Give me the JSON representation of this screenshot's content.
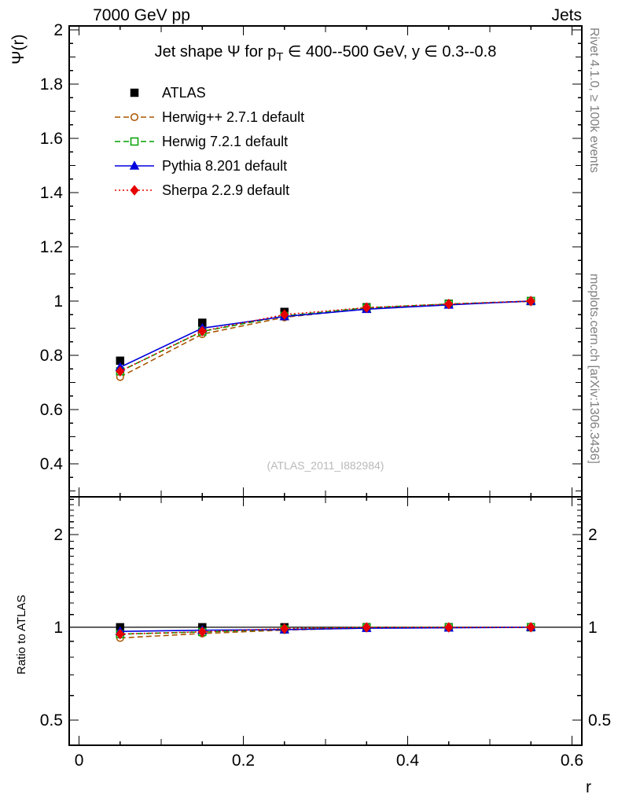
{
  "header": {
    "left": "7000 GeV pp",
    "right": "Jets"
  },
  "title": {
    "pre": "Jet shape Ψ for p",
    "sub": "T",
    "post": " ∈ 400--500 GeV, y ∈ 0.3--0.8"
  },
  "axes": {
    "y_label": "Ψ(r)",
    "ratio_label": "Ratio to ATLAS",
    "x_label": "r"
  },
  "side_texts": {
    "top": "Rivet 4.1.0, ≥ 100k events",
    "bottom": "mcplots.cern.ch [arXiv:1306.3436]"
  },
  "watermark": "(ATLAS_2011_I882984)",
  "chart_data": {
    "type": "line",
    "title": "Jet shape Ψ for p_T ∈ 400--500 GeV, y ∈ 0.3--0.8",
    "xlabel": "r",
    "ylabel": "Ψ(r)",
    "ratio_ylabel": "Ratio to ATLAS",
    "legend_position": "top-left-inside",
    "grid": false,
    "x": [
      0.05,
      0.15,
      0.25,
      0.35,
      0.45,
      0.55
    ],
    "x_range": [
      -0.012,
      0.612
    ],
    "y_range": [
      0.278,
      2.0145
    ],
    "ratio_range": [
      0.414,
      2.65
    ],
    "ratio_scale": "log",
    "x_ticks": {
      "major": [
        0,
        0.2,
        0.4,
        0.6
      ],
      "labels": [
        "0",
        "0.2",
        "0.4",
        "0.6"
      ]
    },
    "y_ticks": {
      "major": [
        0.4,
        0.6,
        0.8,
        1.0,
        1.2,
        1.4,
        1.6,
        1.8,
        2.0
      ],
      "labels": [
        "0.4",
        "0.6",
        "0.8",
        "1",
        "1.2",
        "1.4",
        "1.6",
        "1.8",
        "2"
      ]
    },
    "ratio_ticks": {
      "major": [
        0.5,
        1,
        2
      ],
      "labels": [
        "0.5",
        "1",
        "2"
      ],
      "minor": [
        0.6,
        0.7,
        0.8,
        0.9,
        1.1,
        1.2,
        1.3,
        1.4,
        1.5,
        1.6,
        1.7,
        1.8,
        1.9,
        2.1,
        2.2,
        2.3,
        2.4,
        2.5,
        2.6
      ]
    },
    "ratio_reference": 1,
    "series": [
      {
        "name": "ATLAS",
        "marker": "square",
        "color": "#000000",
        "fill": true,
        "line": "none",
        "values": [
          0.78,
          0.92,
          0.96,
          0.977,
          0.99,
          1.0
        ],
        "errors": [
          0.012,
          0.008,
          0.005,
          0.004,
          0.003,
          0.002
        ]
      },
      {
        "name": "Herwig++ 2.7.1 default",
        "marker": "circle",
        "color": "#aa5500",
        "fill": false,
        "line": "dashed",
        "values": [
          0.72,
          0.878,
          0.94,
          0.972,
          0.988,
          0.999
        ],
        "errors": [
          0.015,
          0.006,
          0.004,
          0.003,
          0.002,
          0.002
        ]
      },
      {
        "name": "Herwig 7.2.1 default",
        "marker": "square",
        "color": "#00a000",
        "fill": false,
        "line": "dashed",
        "values": [
          0.741,
          0.888,
          0.945,
          0.975,
          0.989,
          1.0
        ],
        "errors": [
          0.008,
          0.004,
          0.003,
          0.002,
          0.002,
          0.001
        ]
      },
      {
        "name": "Pythia 8.201 default",
        "marker": "triangle",
        "color": "#0000dd",
        "fill": true,
        "line": "solid",
        "values": [
          0.756,
          0.9,
          0.943,
          0.97,
          0.986,
          1.0
        ],
        "errors": [
          0.008,
          0.004,
          0.003,
          0.002,
          0.002,
          0.001
        ]
      },
      {
        "name": "Sherpa 2.2.9 default",
        "marker": "diamond",
        "color": "#e60000",
        "fill": true,
        "line": "dotted",
        "values": [
          0.741,
          0.889,
          0.95,
          0.976,
          0.989,
          1.0
        ],
        "errors": [
          0.008,
          0.004,
          0.003,
          0.002,
          0.002,
          0.001
        ]
      }
    ]
  }
}
